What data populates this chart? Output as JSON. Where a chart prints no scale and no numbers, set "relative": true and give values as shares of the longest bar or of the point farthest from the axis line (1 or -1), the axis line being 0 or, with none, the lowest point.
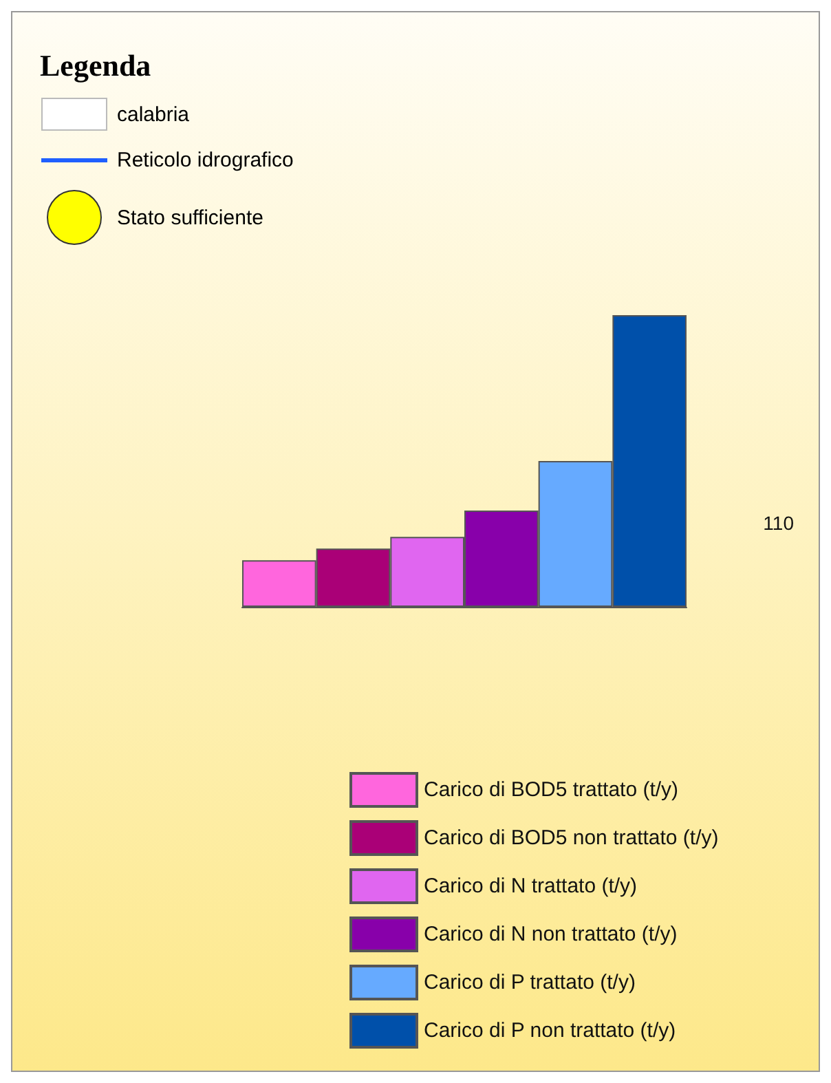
{
  "chart_data": {
    "type": "bar",
    "title": "Legenda",
    "relative": true,
    "categories": [
      null
    ],
    "series": [
      {
        "name": "Carico di BOD5 trattato (t/y)",
        "color": "#ff66dd",
        "values": [
          0.16
        ]
      },
      {
        "name": "Carico di BOD5 non trattato (t/y)",
        "color": "#aa0077",
        "values": [
          0.2
        ]
      },
      {
        "name": "Carico di N trattato (t/y)",
        "color": "#e066f0",
        "values": [
          0.24
        ]
      },
      {
        "name": "Carico di N non trattato (t/y)",
        "color": "#8800aa",
        "values": [
          0.33
        ]
      },
      {
        "name": "Carico di P trattato (t/y)",
        "color": "#66aaff",
        "values": [
          0.5
        ]
      },
      {
        "name": "Carico di P non trattato (t/y)",
        "color": "#0050aa",
        "values": [
          1
        ]
      }
    ],
    "legend": "bottom right",
    "annotations": [
      "calabria",
      "Reticolo idrografico",
      "Stato sufficiente",
      "110"
    ]
  }
}
